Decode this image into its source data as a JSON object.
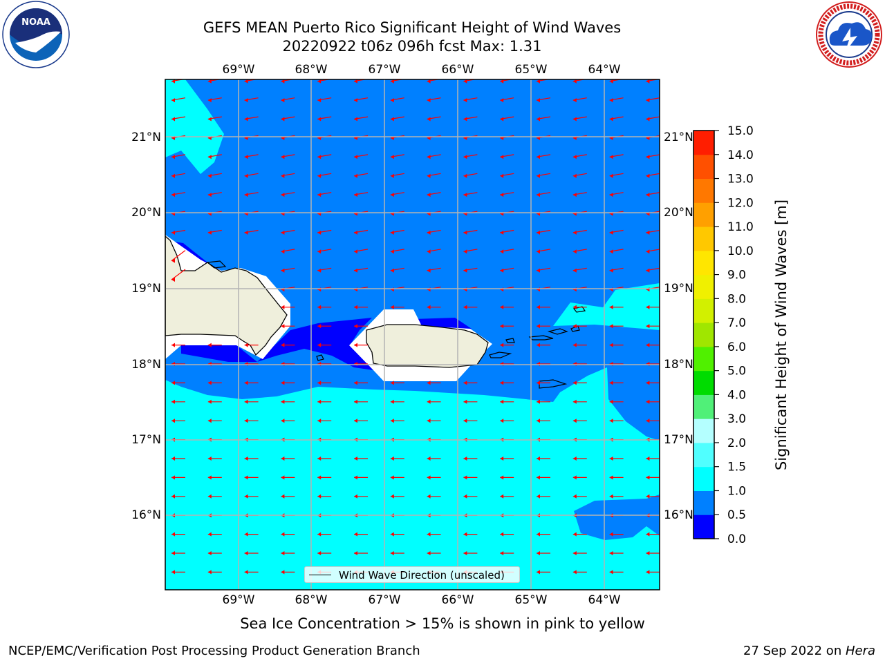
{
  "title": {
    "line1": "GEFS MEAN Puerto Rico Significant Height of Wind Waves",
    "line2": "20220922 t06z 096h fcst   Max: 1.31"
  },
  "map": {
    "lon_labels": [
      "69°W",
      "68°W",
      "67°W",
      "66°W",
      "65°W",
      "64°W"
    ],
    "lat_labels": [
      "21°N",
      "20°N",
      "19°N",
      "18°N",
      "17°N",
      "16°N"
    ],
    "land_color": "#efefdc",
    "ocean_colors": {
      "0.0-0.5": "#0000ff",
      "0.5-1.0": "#0080ff",
      "1.0-1.5": "#00ffff"
    },
    "arrow_color": "#ff0000"
  },
  "colorbar": {
    "label": "Significant Height of Wind Waves [m]",
    "ticks": [
      "0.0",
      "0.5",
      "1.0",
      "1.5",
      "2.0",
      "3.0",
      "4.0",
      "5.0",
      "6.0",
      "7.0",
      "8.0",
      "9.0",
      "10.0",
      "11.0",
      "12.0",
      "13.0",
      "14.0",
      "15.0"
    ],
    "colors": [
      "#0000ff",
      "#0080ff",
      "#00ffff",
      "#50ffff",
      "#b4ffff",
      "#50f078",
      "#00dc00",
      "#50f000",
      "#a0e600",
      "#d2f000",
      "#f0f000",
      "#ffe600",
      "#ffc800",
      "#ffa000",
      "#ff7800",
      "#ff5000",
      "#ff1e00"
    ]
  },
  "legend": {
    "text": "Wind Wave Direction (unscaled)"
  },
  "subcaption": "Sea Ice Concentration > 15% is shown in pink to yellow",
  "footer": {
    "left": "NCEP/EMC/Verification Post Processing Product Generation Branch",
    "date": "27 Sep 2022 on ",
    "machine": "Hera"
  },
  "logos": {
    "left": {
      "icon": "noaa-logo-icon",
      "text": "NOAA"
    },
    "right": {
      "icon": "nws-logo-icon",
      "text": "NATIONAL WEATHER SERVICE"
    }
  }
}
